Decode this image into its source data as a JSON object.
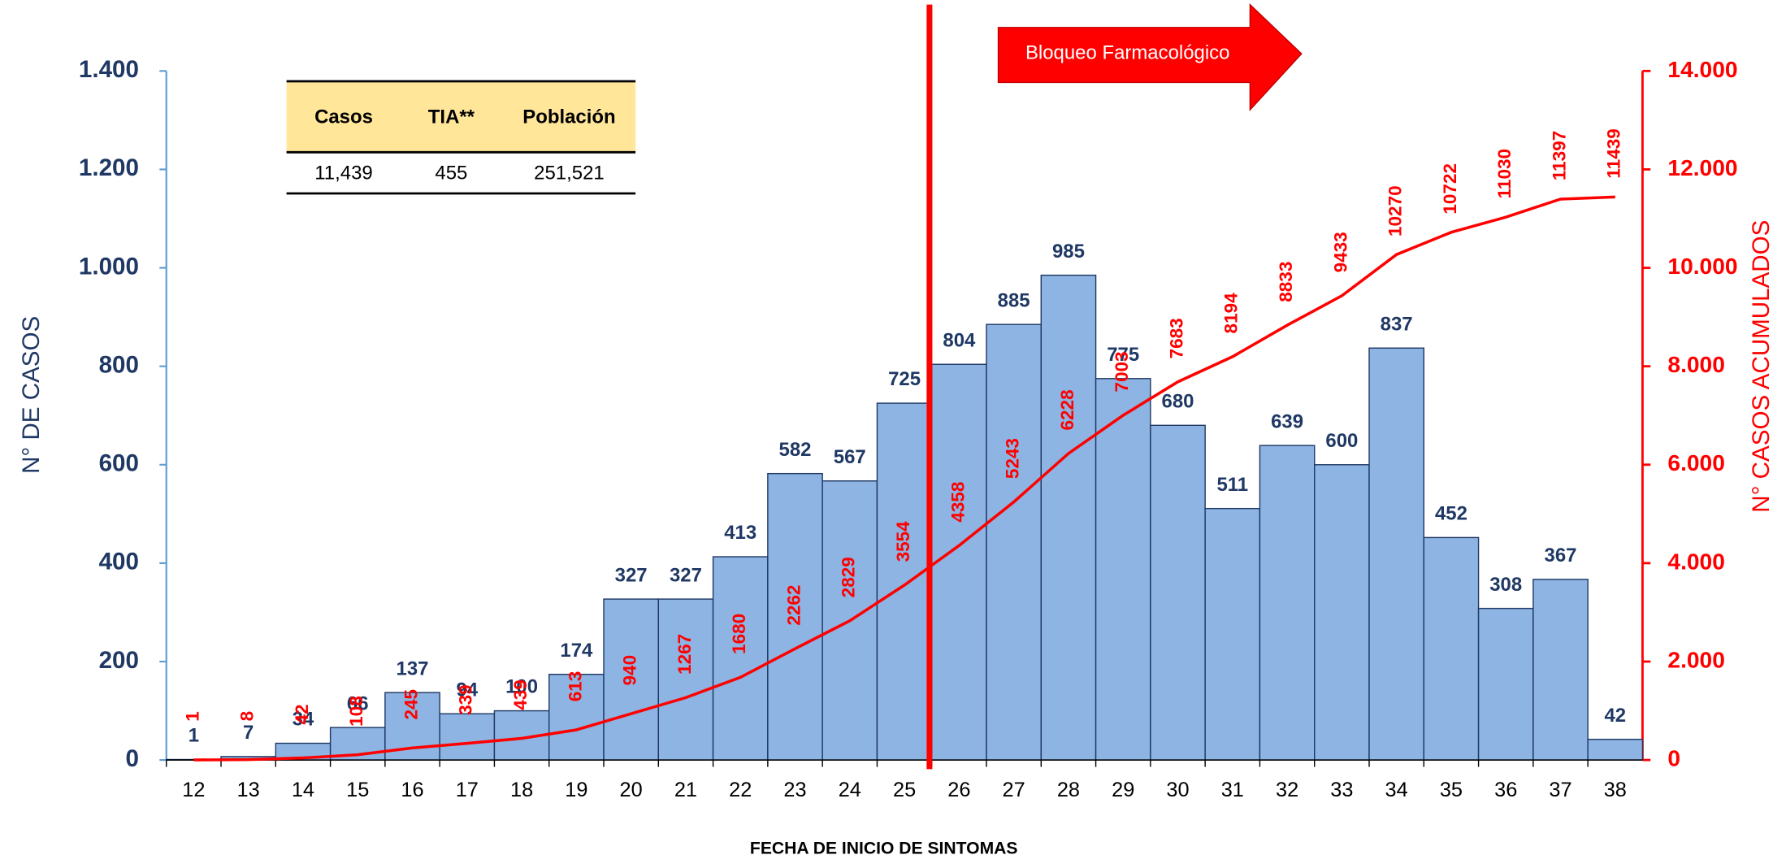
{
  "chart_data": {
    "type": "bar",
    "x_label": "FECHA DE INICIO DE SINTOMAS",
    "y_label": "N° DE CASOS",
    "y2_label": "N° CASOS ACUMULADOS",
    "annotation": "Bloqueo Farmacológico",
    "table": {
      "headers": [
        "Casos",
        "TIA**",
        "Población"
      ],
      "rows": [
        [
          "11,439",
          "455",
          "251,521"
        ]
      ]
    },
    "categories": [
      "12",
      "13",
      "14",
      "15",
      "16",
      "17",
      "18",
      "19",
      "20",
      "21",
      "22",
      "23",
      "24",
      "25",
      "26",
      "27",
      "28",
      "29",
      "30",
      "31",
      "32",
      "33",
      "34",
      "35",
      "36",
      "37",
      "38"
    ],
    "series": [
      {
        "type": "bar",
        "color": "#8db4e2",
        "values": [
          1,
          7,
          34,
          66,
          137,
          94,
          100,
          174,
          327,
          327,
          413,
          582,
          567,
          725,
          804,
          885,
          985,
          775,
          680,
          511,
          639,
          600,
          837,
          452,
          308,
          367,
          42
        ]
      },
      {
        "type": "line",
        "color": "#ff0000",
        "axis": "y2",
        "values": [
          1,
          8,
          42,
          108,
          245,
          339,
          439,
          613,
          940,
          1267,
          1680,
          2262,
          2829,
          3554,
          4358,
          5243,
          6228,
          7003,
          7683,
          8194,
          8833,
          9433,
          10270,
          10722,
          11030,
          11397,
          11439
        ]
      }
    ],
    "ylim": [
      0,
      1400
    ],
    "yticks": [
      0,
      200,
      400,
      600,
      800,
      {
        "value": 1000,
        "label": "1.000"
      },
      {
        "value": 1200,
        "label": "1.200"
      },
      {
        "value": 1400,
        "label": "1.400"
      }
    ],
    "y2lim": [
      0,
      14000
    ],
    "y2ticks": [
      0,
      {
        "value": 2000,
        "label": "2.000"
      },
      {
        "value": 4000,
        "label": "4.000"
      },
      {
        "value": 6000,
        "label": "6.000"
      },
      {
        "value": 8000,
        "label": "8.000"
      },
      {
        "value": 10000,
        "label": "10.000"
      },
      {
        "value": 12000,
        "label": "12.000"
      },
      {
        "value": 14000,
        "label": "14.000"
      }
    ]
  }
}
